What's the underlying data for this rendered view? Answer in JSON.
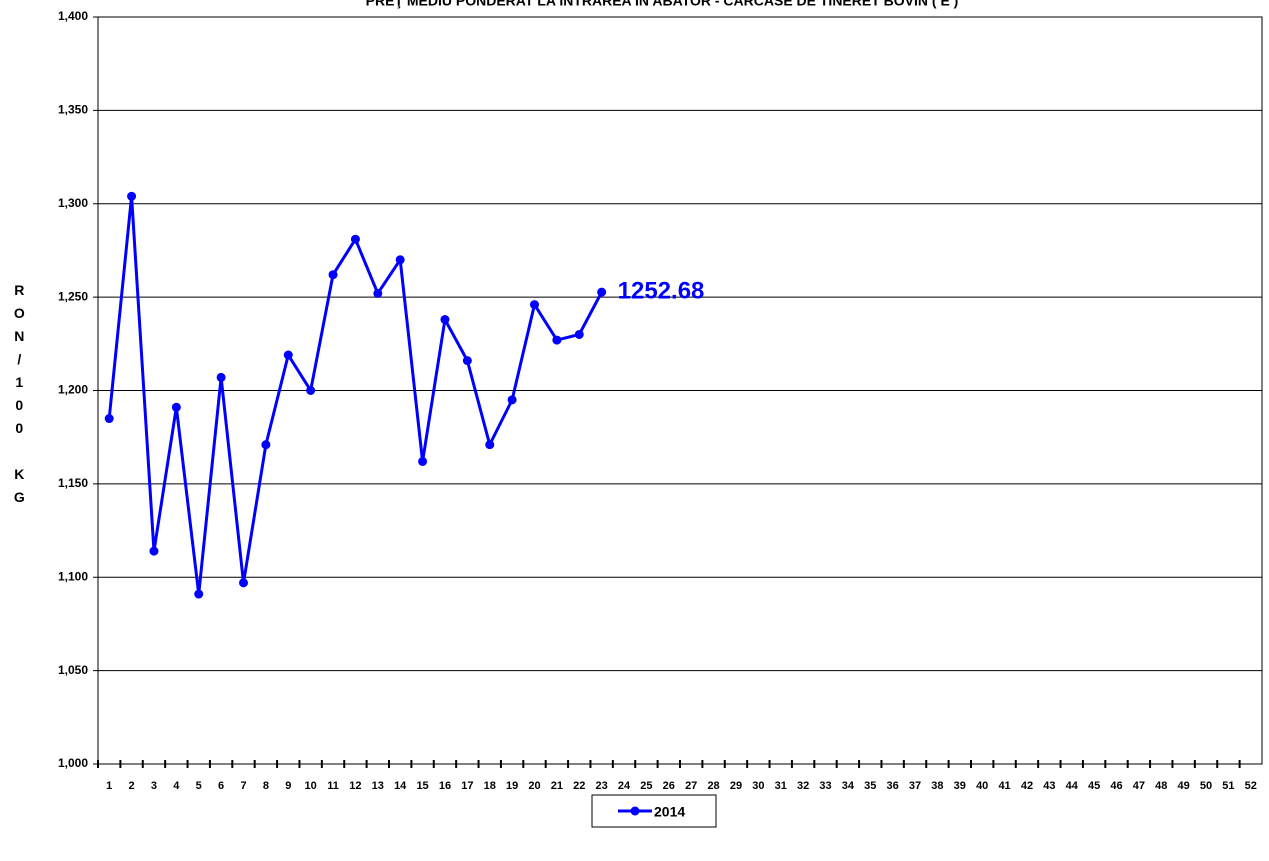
{
  "chart_data": {
    "type": "line",
    "title": "PREŢ MEDIU PONDERAT LA INTRAREA ÎN ABATOR - CARCASE DE TINERET BOVIN ( E )",
    "y_label": "RON/100 KG",
    "categories": [
      "1",
      "2",
      "3",
      "4",
      "5",
      "6",
      "7",
      "8",
      "9",
      "10",
      "11",
      "12",
      "13",
      "14",
      "15",
      "16",
      "17",
      "18",
      "19",
      "20",
      "21",
      "22",
      "23",
      "24",
      "25",
      "26",
      "27",
      "28",
      "29",
      "30",
      "31",
      "32",
      "33",
      "34",
      "35",
      "36",
      "37",
      "38",
      "39",
      "40",
      "41",
      "42",
      "43",
      "44",
      "45",
      "46",
      "47",
      "48",
      "49",
      "50",
      "51",
      "52"
    ],
    "series": [
      {
        "name": "2014",
        "color": "#0000ff",
        "values": [
          1185,
          1304,
          1114,
          1191,
          1091,
          1207,
          1097,
          1171,
          1219,
          1200,
          1262,
          1281,
          1252,
          1270,
          1162,
          1238,
          1216,
          1171,
          1195,
          1246,
          1227,
          1230,
          1252.68,
          null,
          null,
          null,
          null,
          null,
          null,
          null,
          null,
          null,
          null,
          null,
          null,
          null,
          null,
          null,
          null,
          null,
          null,
          null,
          null,
          null,
          null,
          null,
          null,
          null,
          null,
          null,
          null,
          null
        ],
        "value_labels": [
          null,
          null,
          null,
          null,
          null,
          null,
          null,
          null,
          null,
          null,
          null,
          null,
          null,
          null,
          null,
          null,
          null,
          null,
          null,
          null,
          null,
          null,
          "1252.68",
          null,
          null,
          null,
          null,
          null,
          null,
          null,
          null,
          null,
          null,
          null,
          null,
          null,
          null,
          null,
          null,
          null,
          null,
          null,
          null,
          null,
          null,
          null,
          null,
          null,
          null,
          null,
          null,
          null
        ]
      }
    ],
    "ylim": [
      1000,
      1400
    ],
    "yticks": [
      {
        "value": 1000,
        "label": "1,000"
      },
      {
        "value": 1050,
        "label": "1,050"
      },
      {
        "value": 1100,
        "label": "1,100"
      },
      {
        "value": 1150,
        "label": "1,150"
      },
      {
        "value": 1200,
        "label": "1,200"
      },
      {
        "value": 1250,
        "label": "1,250"
      },
      {
        "value": 1300,
        "label": "1,300"
      },
      {
        "value": 1350,
        "label": "1,350"
      },
      {
        "value": 1400,
        "label": "1,400"
      }
    ],
    "grid": true,
    "legend": "bottom"
  }
}
